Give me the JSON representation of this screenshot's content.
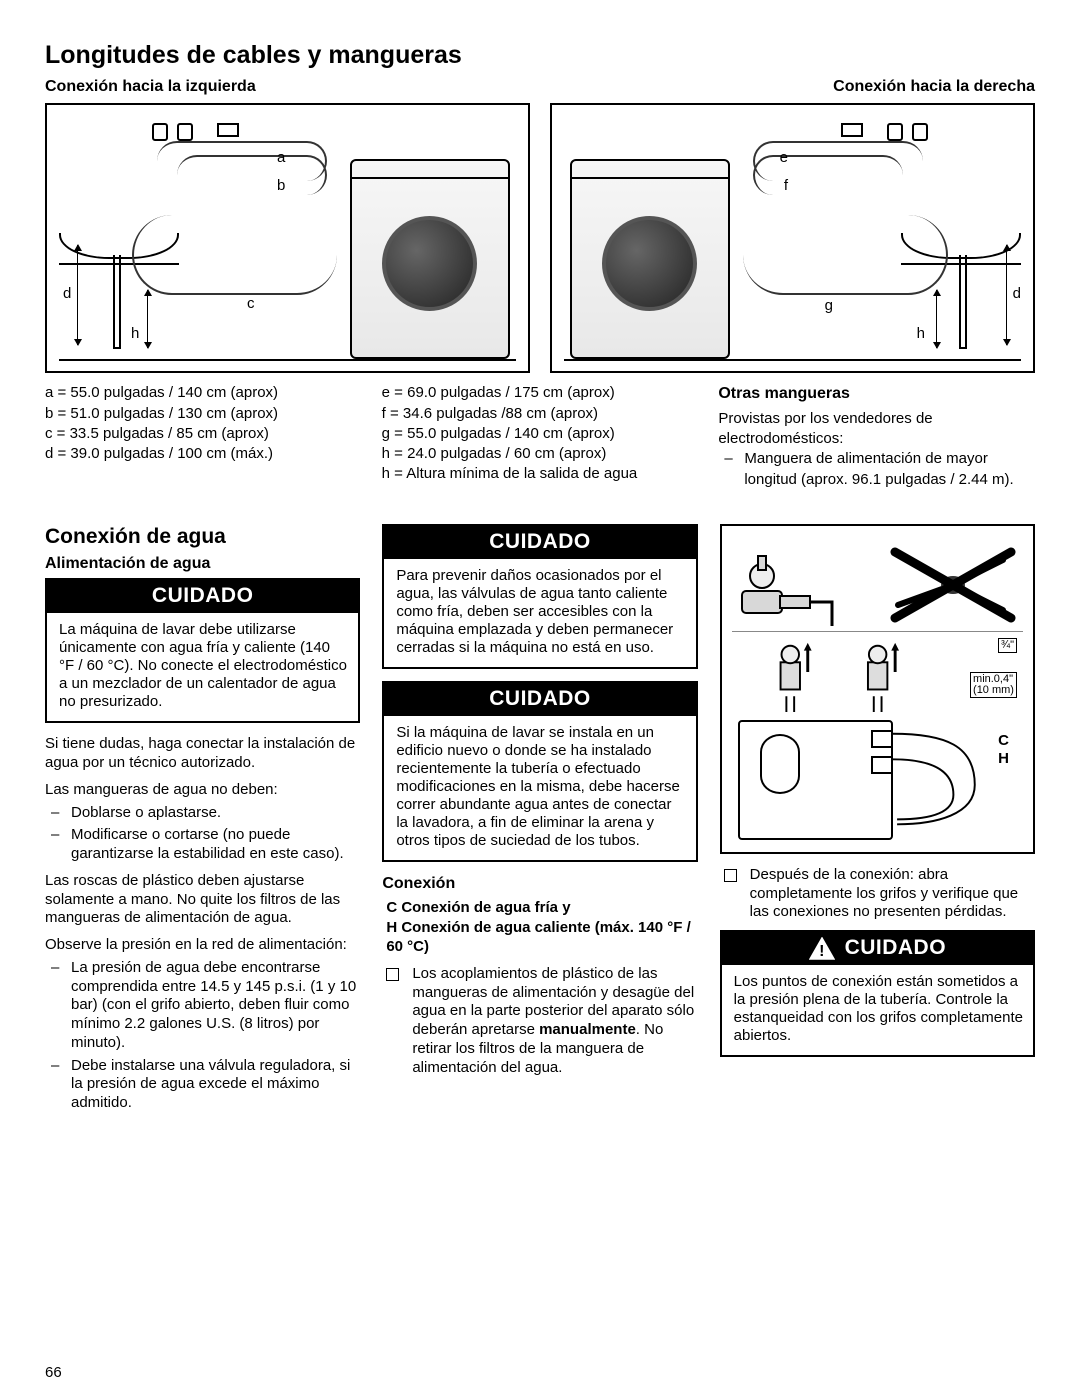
{
  "page_number": "66",
  "title": "Longitudes de cables y mangueras",
  "left_conn_label": "Conexión hacia la izquierda",
  "right_conn_label": "Conexión hacia la derecha",
  "diagram_left": {
    "labels": [
      "a",
      "b",
      "c",
      "d",
      "h"
    ]
  },
  "diagram_right": {
    "labels": [
      "e",
      "f",
      "g",
      "d",
      "h"
    ]
  },
  "measurements_left": [
    "a = 55.0 pulgadas / 140 cm (aprox)",
    "b = 51.0 pulgadas / 130 cm (aprox)",
    "c = 33.5 pulgadas / 85 cm (aprox)",
    "d = 39.0 pulgadas / 100 cm (máx.)"
  ],
  "measurements_mid": [
    "e = 69.0 pulgadas / 175 cm (aprox)",
    "f = 34.6 pulgadas /88 cm (aprox)",
    "g = 55.0 pulgadas / 140 cm (aprox)",
    "h = 24.0 pulgadas / 60 cm (aprox)",
    "h = Altura mínima de la salida de agua"
  ],
  "other_hoses": {
    "heading": "Otras mangueras",
    "intro": "Provistas por los vendedores de electrodomésticos:",
    "items": [
      "Manguera de alimentación de mayor longitud (aprox. 96.1 pulgadas / 2.44 m)."
    ]
  },
  "water_conn_heading": "Conexión de agua",
  "water_supply_heading": "Alimentación de agua",
  "cuidado_label": "CUIDADO",
  "col1": {
    "warn1": "La máquina de lavar debe utilizarse únicamente con agua fría y caliente (140 °F / 60 °C). No conecte el electrodoméstico a un mezclador de un calentador de agua no presurizado.",
    "p1": "Si tiene dudas, haga conectar la instalación de agua por un técnico autorizado.",
    "p2": "Las mangueras de agua no deben:",
    "list1": [
      "Doblarse o aplastarse.",
      "Modificarse o cortarse (no puede garantizarse la estabilidad en este caso)."
    ],
    "p3": "Las roscas de plástico deben ajustarse solamente a mano. No quite los filtros de las mangueras de alimentación de agua.",
    "p4": "Observe la presión en la red de alimentación:",
    "list2": [
      "La presión de agua debe encontrarse comprendida entre 14.5 y 145 p.s.i. (1 y 10 bar) (con el grifo abierto, deben fluir como mínimo 2.2 galones U.S. (8 litros) por minuto).",
      "Debe instalarse una válvula reguladora, si la presión de agua excede el máximo admitido."
    ]
  },
  "col2": {
    "warn1": "Para prevenir daños ocasionados por el agua, las válvulas de agua tanto caliente como fría, deben ser accesibles con la máquina emplazada y deben permanecer cerradas si la máquina no está en uso.",
    "warn2": "Si la máquina de lavar se instala en un edificio nuevo o donde se ha instalado recientemente la tubería o efectuado modificaciones en la misma, debe hacerse correr abundante agua antes de conectar la lavadora, a fin de eliminar la arena y otros tipos de suciedad de los tubos.",
    "conn_heading": "Conexión",
    "conn_c": "C Conexión de agua fría y",
    "conn_h": "H Conexión de agua caliente (máx. 140 °F / 60 °C)",
    "box_list": [
      "Los acoplamientos de plástico de las mangueras de alimentación y desagüe del agua en la parte posterior del aparato sólo deberán apretarse manualmente. No retirar los filtros de la manguera de alimentación del agua."
    ],
    "bold_word": "manualmente"
  },
  "col3": {
    "diagram_labels": {
      "c": "C",
      "h": "H",
      "thread": "¾\"",
      "min": "min.0,4\"\n(10 mm)"
    },
    "box_list": [
      "Después de la conexión: abra completamente los grifos y verifique que las conexiones no presenten pérdidas."
    ],
    "warn": "Los puntos de conexión están sometidos a la presión plena de la tubería. Controle la estanqueidad con los grifos completamente abiertos."
  },
  "colors": {
    "text": "#000000",
    "bg": "#ffffff",
    "warn_bg": "#000000",
    "warn_fg": "#ffffff"
  }
}
